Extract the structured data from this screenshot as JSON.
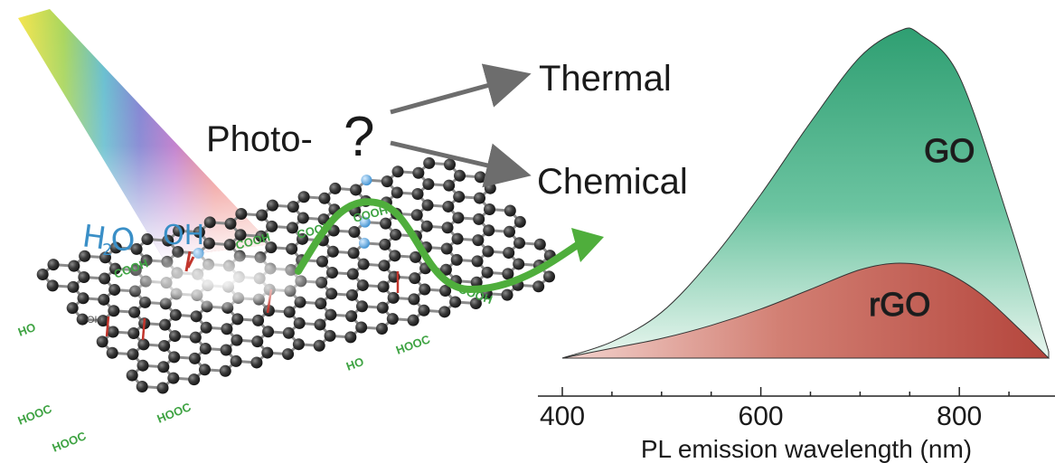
{
  "process": {
    "prefix": "Photo-",
    "question": "?",
    "branches": [
      "Thermal",
      "Chemical"
    ]
  },
  "molecules": {
    "water_main": "H",
    "water_sub": "2",
    "water_end": "O",
    "hydroxyl": "OH"
  },
  "functional_groups": {
    "cooh": "COOH",
    "hooc": "HOOC",
    "ho": "HO",
    "oh": "OH"
  },
  "chart_data": {
    "type": "area",
    "xlabel": "PL emission wavelength (nm)",
    "xlim": [
      400,
      890
    ],
    "x_ticks": [
      "400",
      "600",
      "800"
    ],
    "series": [
      {
        "name": "GO",
        "color": "#3fae84",
        "x": [
          400,
          450,
          500,
          550,
          600,
          650,
          700,
          740,
          760,
          800,
          850,
          890
        ],
        "y": [
          0.0,
          0.05,
          0.14,
          0.3,
          0.5,
          0.72,
          0.92,
          1.0,
          0.99,
          0.86,
          0.42,
          0.02
        ]
      },
      {
        "name": "rGO",
        "color": "#c0504d",
        "x": [
          400,
          450,
          500,
          550,
          600,
          650,
          700,
          740,
          780,
          820,
          860,
          890
        ],
        "y": [
          0.0,
          0.03,
          0.06,
          0.1,
          0.15,
          0.21,
          0.27,
          0.29,
          0.27,
          0.2,
          0.09,
          0.0
        ]
      }
    ]
  }
}
